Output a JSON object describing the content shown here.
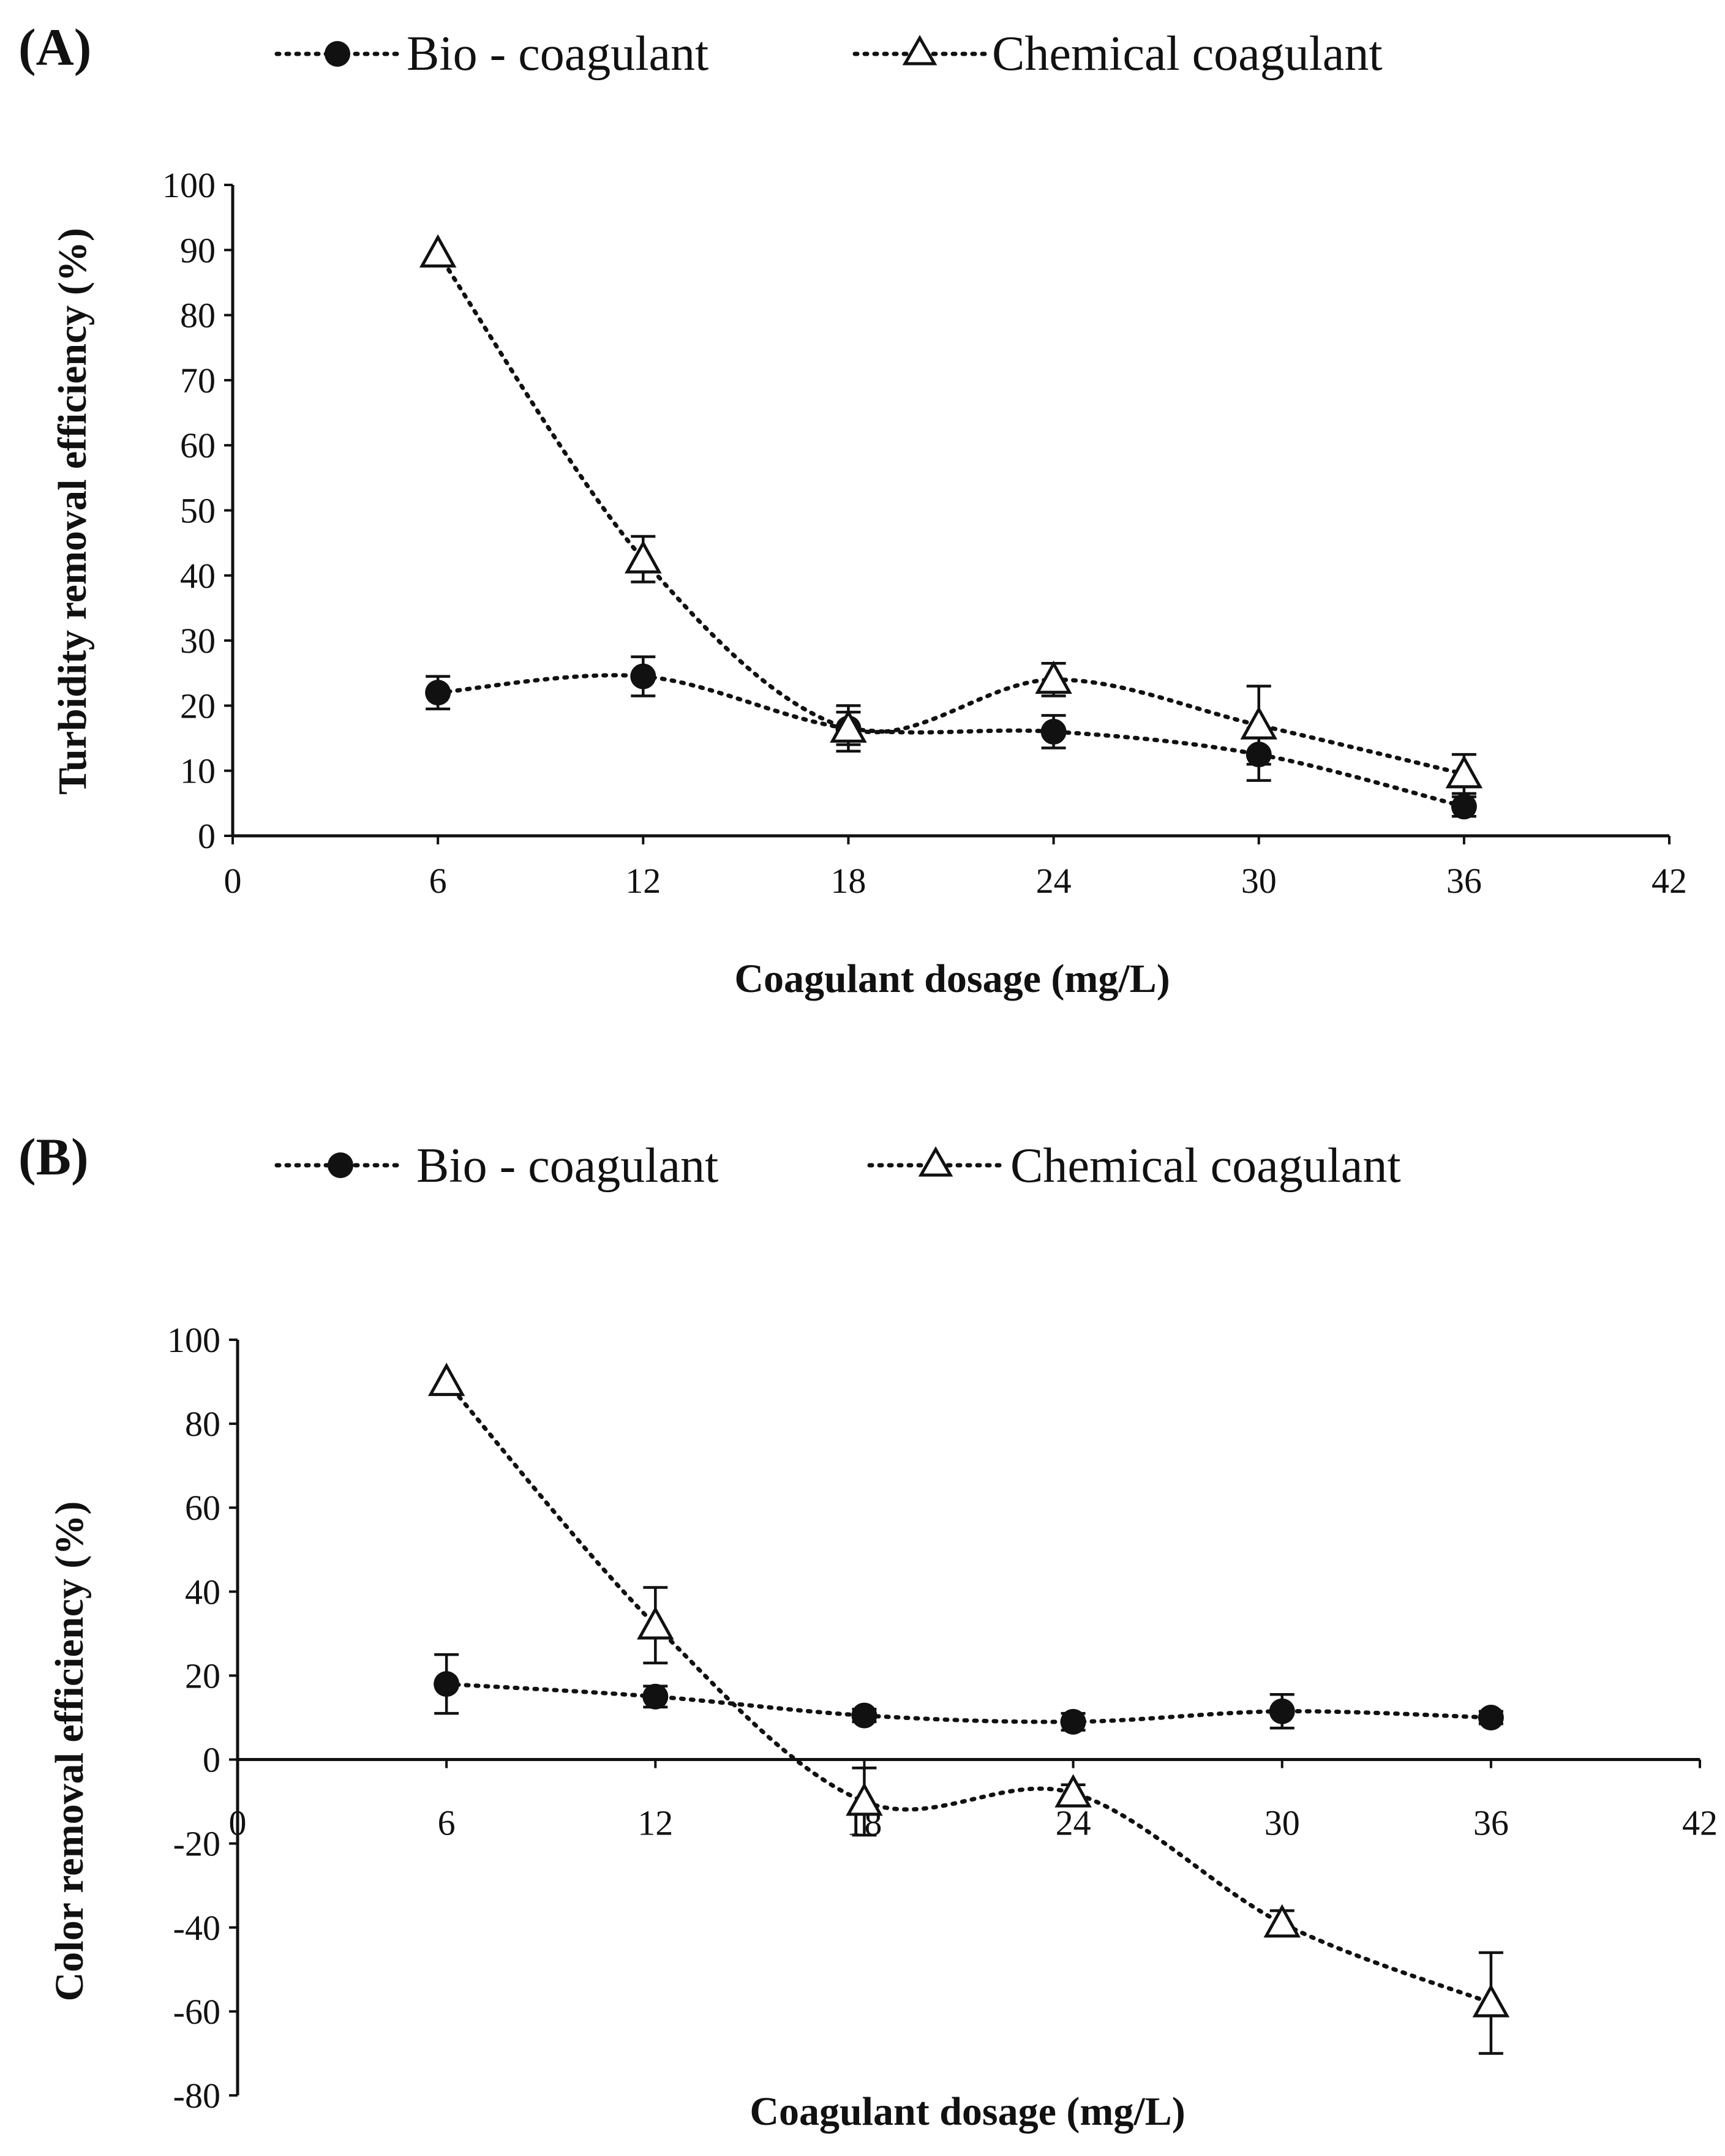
{
  "chart_data": [
    {
      "type": "line",
      "panel": "(A)",
      "xlabel": "Coagulant dosage (mg/L)",
      "ylabel": "Turbidity  removal efficiency (%)",
      "xlim": [
        0,
        42
      ],
      "ylim": [
        0,
        100
      ],
      "xticks": [
        0,
        6,
        12,
        18,
        24,
        30,
        36,
        42
      ],
      "yticks": [
        0,
        10,
        20,
        30,
        40,
        50,
        60,
        70,
        80,
        90,
        100
      ],
      "legend_position": "top",
      "series": [
        {
          "name": "Bio - coagulant",
          "marker": "filled-circle",
          "x": [
            6,
            12,
            18,
            24,
            30,
            36
          ],
          "values": [
            22,
            24.5,
            16.5,
            16,
            12.5,
            4.5
          ],
          "error": [
            2.5,
            3,
            2.5,
            2.5,
            4,
            1.5
          ]
        },
        {
          "name": "Chemical coagulant",
          "marker": "open-triangle",
          "x": [
            6,
            12,
            18,
            24,
            30,
            36
          ],
          "values": [
            89.5,
            42.5,
            16.5,
            24,
            17,
            9.5
          ],
          "error": [
            0,
            3.5,
            3.5,
            2.5,
            6,
            3
          ]
        }
      ]
    },
    {
      "type": "line",
      "panel": "(B)",
      "xlabel": "Coagulant dosage (mg/L)",
      "ylabel": "Color removal efficiency (%)",
      "xlim": [
        0,
        42
      ],
      "ylim": [
        -80,
        100
      ],
      "xticks": [
        0,
        6,
        12,
        18,
        24,
        30,
        36,
        42
      ],
      "yticks": [
        -80,
        -60,
        -40,
        -20,
        0,
        20,
        40,
        60,
        80,
        100
      ],
      "legend_position": "top",
      "series": [
        {
          "name": "Bio - coagulant",
          "marker": "filled-circle",
          "x": [
            6,
            12,
            18,
            24,
            30,
            36
          ],
          "values": [
            18,
            15,
            10.5,
            9,
            11.5,
            10
          ],
          "error": [
            7,
            2.5,
            1.5,
            2,
            4,
            1.5
          ]
        },
        {
          "name": "Chemical coagulant",
          "marker": "open-triangle",
          "x": [
            6,
            12,
            18,
            24,
            30,
            36
          ],
          "values": [
            90,
            32,
            -10,
            -8,
            -39,
            -58
          ],
          "error": [
            0,
            9,
            8,
            2,
            3,
            12
          ]
        }
      ]
    }
  ]
}
